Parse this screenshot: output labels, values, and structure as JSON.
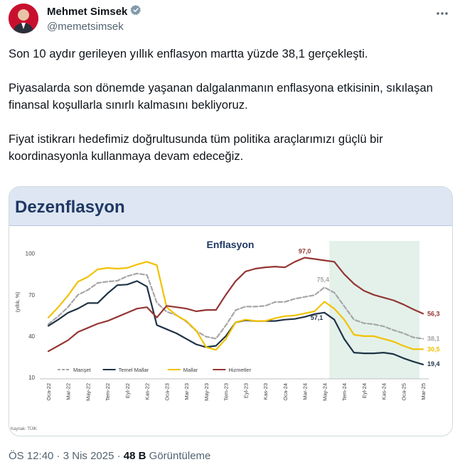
{
  "author": {
    "name": "Mehmet Simsek",
    "handle": "@memetsimsek",
    "verified_color": "#829aab"
  },
  "tweet": {
    "paragraphs": [
      "Son 10 aydır gerileyen yıllık enflasyon martta yüzde 38,1 gerçekleşti.",
      "Piyasalarda son dönemde yaşanan dalgalanmanın enflasyona etkisinin, sıkılaşan finansal koşullarla sınırlı kalmasını bekliyoruz.",
      "Fiyat istikrarı hedefimiz doğrultusunda tüm politika araçlarımızı güçlü bir koordinasyonla kullanmaya devam edeceğiz."
    ]
  },
  "media": {
    "slide_title": "Dezenflasyon",
    "source": "Kaynak: TÜİK"
  },
  "chart_data": {
    "type": "line",
    "title": "Enflasyon",
    "ylabel": "(yıllık, %)",
    "ylim": [
      10,
      105
    ],
    "yticks": [
      10,
      40,
      70,
      100
    ],
    "grid": false,
    "legend_position": "bottom-left",
    "shaded_region": {
      "from": "Haz-24",
      "to": "Mar-25",
      "color": "#e3f1ea"
    },
    "x": [
      "Oca-22",
      "Şub-22",
      "Mar-22",
      "Nis-22",
      "May-22",
      "Haz-22",
      "Tem-22",
      "Ağu-22",
      "Eyl-22",
      "Eki-22",
      "Kas-22",
      "Ara-22",
      "Oca-23",
      "Şub-23",
      "Mar-23",
      "Nis-23",
      "May-23",
      "Haz-23",
      "Tem-23",
      "Ağu-23",
      "Eyl-23",
      "Eki-23",
      "Kas-23",
      "Ara-23",
      "Oca-24",
      "Şub-24",
      "Mar-24",
      "Nis-24",
      "May-24",
      "Haz-24",
      "Tem-24",
      "Ağu-24",
      "Eyl-24",
      "Eki-24",
      "Kas-24",
      "Ara-24",
      "Oca-25",
      "Şub-25",
      "Mar-25"
    ],
    "xtick_labels": [
      "Oca-22",
      "Mar-22",
      "May-22",
      "Tem-22",
      "Eyl-22",
      "Kas-22",
      "Oca-23",
      "Mar-23",
      "May-23",
      "Tem-23",
      "Eyl-23",
      "Kas-23",
      "Oca-24",
      "Mar-24",
      "May-24",
      "Tem-24",
      "Eyl-24",
      "Kas-24",
      "Oca-25",
      "Mar-25"
    ],
    "series": [
      {
        "name": "Manşet",
        "color": "#a6a6a6",
        "dashed": true,
        "values": [
          48.7,
          54.4,
          61.1,
          70.0,
          73.5,
          78.6,
          79.6,
          80.2,
          83.5,
          85.5,
          84.4,
          64.3,
          57.7,
          55.2,
          50.5,
          43.7,
          39.6,
          38.2,
          47.8,
          58.9,
          61.5,
          61.4,
          62.0,
          64.8,
          64.9,
          67.1,
          68.5,
          69.8,
          75.4,
          71.6,
          61.8,
          52.0,
          49.4,
          48.6,
          47.1,
          44.4,
          42.1,
          39.1,
          38.1
        ]
      },
      {
        "name": "Temel Mallar",
        "color": "#1f3347",
        "dashed": false,
        "values": [
          47.5,
          52.0,
          57.0,
          60.0,
          64.0,
          64.0,
          71.0,
          77.0,
          77.5,
          80.0,
          76.0,
          48.0,
          45.0,
          42.0,
          38.0,
          34.0,
          32.0,
          33.0,
          40.0,
          50.0,
          51.5,
          51.0,
          51.0,
          51.0,
          52.0,
          52.5,
          54.0,
          56.0,
          57.1,
          52.0,
          38.0,
          28.0,
          27.5,
          27.5,
          28.0,
          27.0,
          24.0,
          21.5,
          19.4
        ]
      },
      {
        "name": "Mallar",
        "color": "#f2c100",
        "dashed": false,
        "values": [
          53.5,
          61.0,
          69.5,
          79.5,
          83.0,
          88.5,
          89.5,
          89.0,
          89.5,
          92.0,
          94.0,
          91.5,
          61.0,
          55.0,
          51.0,
          44.0,
          32.0,
          30.0,
          38.0,
          50.0,
          52.0,
          51.0,
          51.0,
          53.0,
          54.5,
          55.0,
          56.5,
          58.0,
          65.0,
          60.0,
          52.0,
          41.0,
          40.0,
          40.0,
          38.0,
          36.0,
          33.0,
          30.5,
          30.5
        ]
      },
      {
        "name": "Hizmetler",
        "color": "#943634",
        "dashed": false,
        "values": [
          29.0,
          33.0,
          37.0,
          43.0,
          46.0,
          49.0,
          51.0,
          54.0,
          57.0,
          60.0,
          61.0,
          53.5,
          62.0,
          61.0,
          60.0,
          58.0,
          59.0,
          59.0,
          70.0,
          80.0,
          87.0,
          89.0,
          90.0,
          90.5,
          90.0,
          94.0,
          97.0,
          96.0,
          95.0,
          94.0,
          85.0,
          78.0,
          73.0,
          70.0,
          68.0,
          66.0,
          63.0,
          59.5,
          56.3
        ]
      }
    ],
    "annotations": [
      {
        "text": "97,0",
        "x": "Mar-24",
        "y": 97.0,
        "color": "#943634"
      },
      {
        "text": "75,4",
        "x": "May-24",
        "y": 75.4,
        "color": "#a6a6a6"
      },
      {
        "text": "57,1",
        "x": "May-24",
        "y": 57.1,
        "color": "#1f3347"
      },
      {
        "text": "56,3",
        "x": "Mar-25",
        "y": 56.3,
        "color": "#943634"
      },
      {
        "text": "38,1",
        "x": "Mar-25",
        "y": 38.1,
        "color": "#a6a6a6"
      },
      {
        "text": "30,5",
        "x": "Mar-25",
        "y": 30.5,
        "color": "#f2c100"
      },
      {
        "text": "19,4",
        "x": "Mar-25",
        "y": 19.4,
        "color": "#1f3347"
      }
    ]
  },
  "footer": {
    "time": "ÖS 12:40",
    "separator": " · ",
    "date": "3 Nis 2025",
    "views_count": "48 B",
    "views_label": "Görüntüleme"
  }
}
